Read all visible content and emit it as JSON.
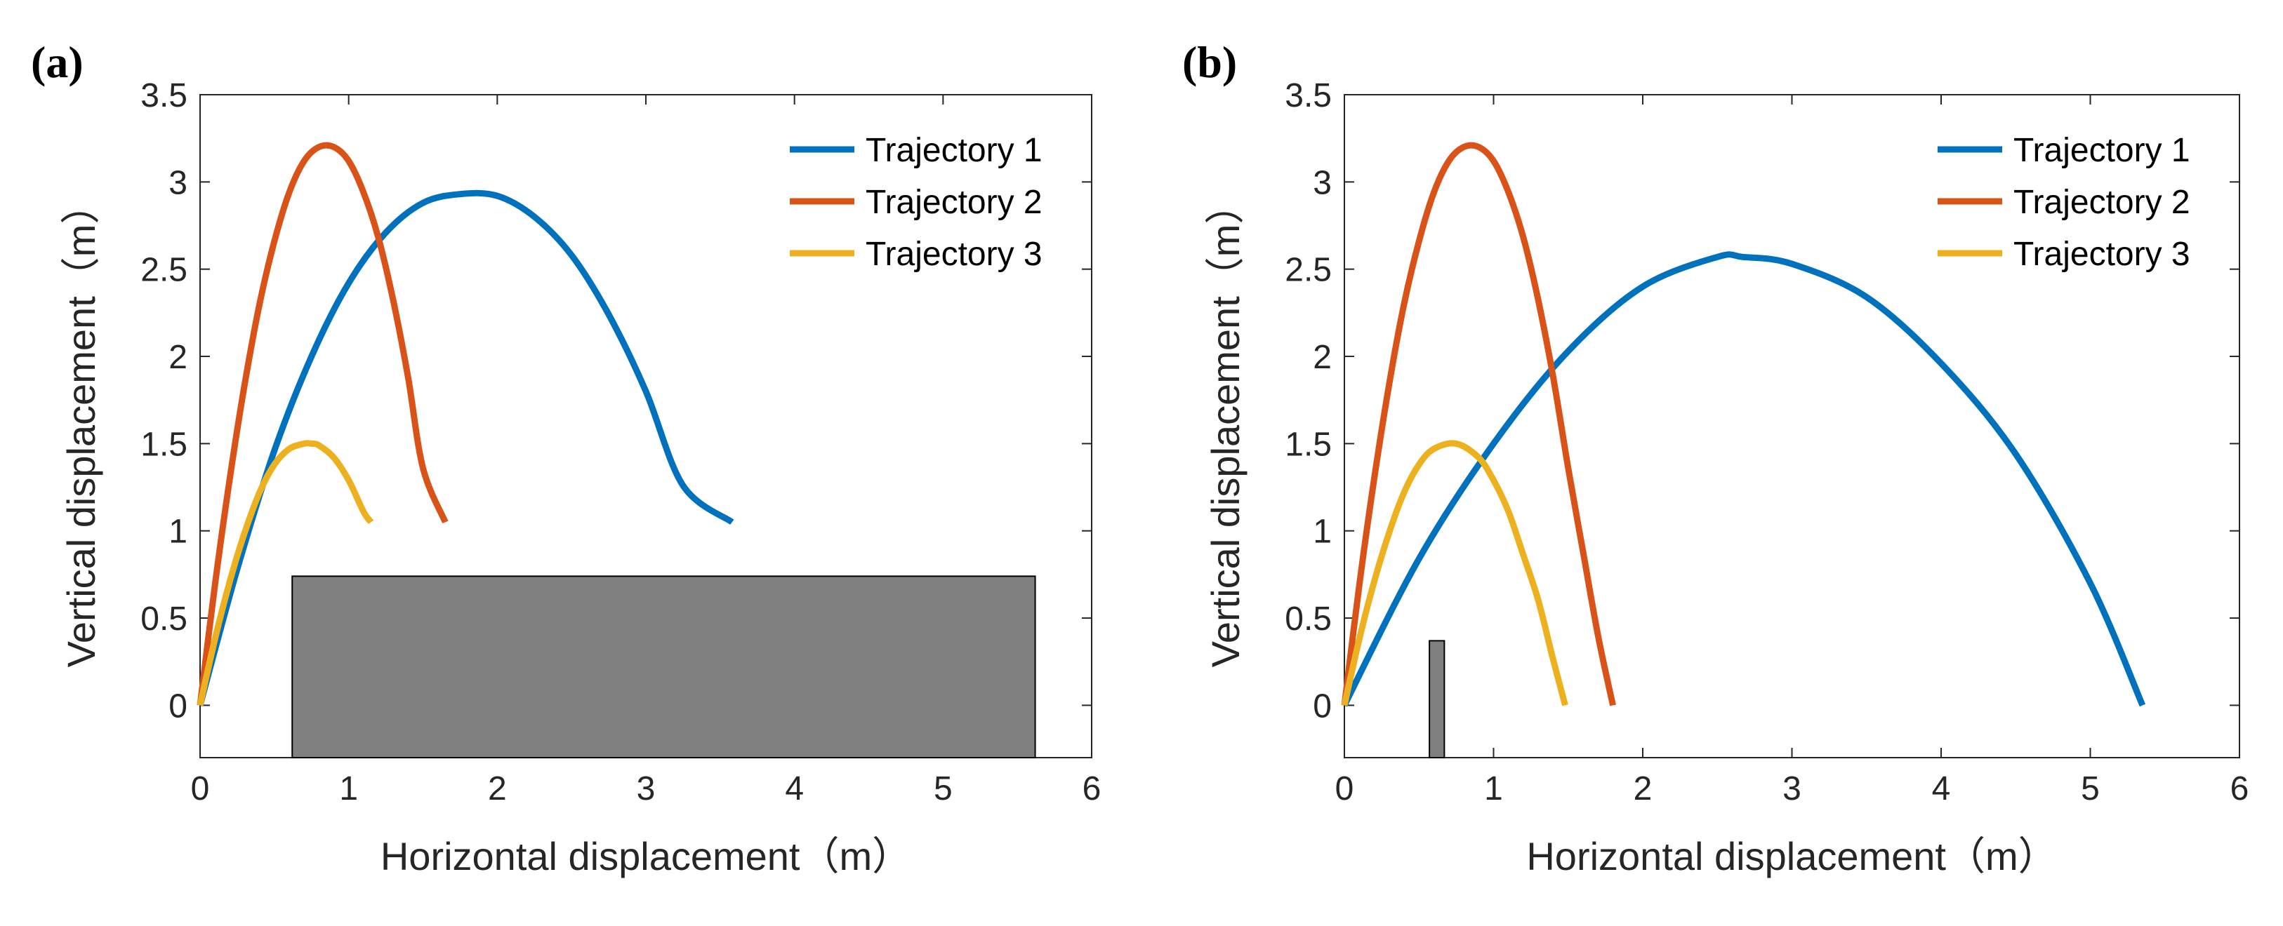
{
  "colors": {
    "trajectory_1": "#0072BD",
    "trajectory_2": "#D95319",
    "trajectory_3": "#EDB120",
    "obstacle": "#808080"
  },
  "chart_data": [
    {
      "panel_label": "(a)",
      "type": "line",
      "xlabel": "Horizontal displacement（m）",
      "ylabel": "Vertical displacement（m）",
      "xlim": [
        0,
        6
      ],
      "ylim": [
        -0.3,
        3.5
      ],
      "xticks": [
        0,
        1,
        2,
        3,
        4,
        5,
        6
      ],
      "yticks": [
        0,
        0.5,
        1,
        1.5,
        2,
        2.5,
        3,
        3.5
      ],
      "legend_position": "top-right",
      "series": [
        {
          "name": "Trajectory 1",
          "color_key": "trajectory_1",
          "x": [
            0,
            0.25,
            0.5,
            0.75,
            1.0,
            1.25,
            1.5,
            1.75,
            2.0,
            2.25,
            2.5,
            2.75,
            3.0,
            3.25,
            3.58
          ],
          "y": [
            0.0,
            0.78,
            1.46,
            2.0,
            2.42,
            2.71,
            2.88,
            2.93,
            2.92,
            2.8,
            2.58,
            2.24,
            1.8,
            1.26,
            1.05
          ]
        },
        {
          "name": "Trajectory 2",
          "color_key": "trajectory_2",
          "x": [
            0,
            0.1,
            0.2,
            0.3,
            0.4,
            0.5,
            0.6,
            0.7,
            0.8,
            0.9,
            1.0,
            1.1,
            1.2,
            1.3,
            1.4,
            1.5,
            1.65
          ],
          "y": [
            0.0,
            0.69,
            1.3,
            1.84,
            2.3,
            2.66,
            2.94,
            3.12,
            3.2,
            3.2,
            3.12,
            2.94,
            2.68,
            2.32,
            1.88,
            1.36,
            1.05
          ]
        },
        {
          "name": "Trajectory 3",
          "color_key": "trajectory_3",
          "x": [
            0,
            0.1,
            0.2,
            0.3,
            0.4,
            0.5,
            0.6,
            0.7,
            0.75,
            0.8,
            0.9,
            1.0,
            1.1,
            1.15
          ],
          "y": [
            0.0,
            0.38,
            0.71,
            0.99,
            1.22,
            1.38,
            1.47,
            1.5,
            1.5,
            1.49,
            1.42,
            1.29,
            1.11,
            1.05
          ]
        }
      ],
      "obstacle": {
        "x_min": 0.62,
        "x_max": 5.62,
        "y_min": -0.3,
        "y_max": 0.74
      }
    },
    {
      "panel_label": "(b)",
      "type": "line",
      "xlabel": "Horizontal displacement（m）",
      "ylabel": "Vertical displacement（m）",
      "xlim": [
        0,
        6
      ],
      "ylim": [
        -0.3,
        3.5
      ],
      "xticks": [
        0,
        1,
        2,
        3,
        4,
        5,
        6
      ],
      "yticks": [
        0,
        0.5,
        1,
        1.5,
        2,
        2.5,
        3,
        3.5
      ],
      "legend_position": "top-right",
      "series": [
        {
          "name": "Trajectory 1",
          "color_key": "trajectory_1",
          "x": [
            0,
            0.5,
            1.0,
            1.5,
            2.0,
            2.5,
            2.67,
            3.0,
            3.5,
            4.0,
            4.5,
            5.0,
            5.35
          ],
          "y": [
            0.0,
            0.84,
            1.5,
            2.03,
            2.4,
            2.57,
            2.57,
            2.53,
            2.34,
            1.96,
            1.44,
            0.7,
            0.0
          ]
        },
        {
          "name": "Trajectory 2",
          "color_key": "trajectory_2",
          "x": [
            0,
            0.1,
            0.2,
            0.3,
            0.4,
            0.5,
            0.6,
            0.7,
            0.8,
            0.9,
            1.0,
            1.1,
            1.2,
            1.3,
            1.4,
            1.5,
            1.6,
            1.7,
            1.8
          ],
          "y": [
            0.0,
            0.69,
            1.3,
            1.84,
            2.3,
            2.66,
            2.94,
            3.12,
            3.2,
            3.2,
            3.12,
            2.94,
            2.68,
            2.32,
            1.88,
            1.36,
            0.88,
            0.4,
            0.0
          ]
        },
        {
          "name": "Trajectory 3",
          "color_key": "trajectory_3",
          "x": [
            0,
            0.1,
            0.2,
            0.3,
            0.4,
            0.5,
            0.6,
            0.75,
            0.9,
            1.0,
            1.1,
            1.2,
            1.3,
            1.4,
            1.48
          ],
          "y": [
            0.0,
            0.38,
            0.71,
            0.99,
            1.22,
            1.38,
            1.47,
            1.5,
            1.42,
            1.29,
            1.11,
            0.86,
            0.6,
            0.26,
            0.0
          ]
        }
      ],
      "obstacle": {
        "x_min": 0.57,
        "x_max": 0.67,
        "y_min": -0.3,
        "y_max": 0.37
      }
    }
  ]
}
